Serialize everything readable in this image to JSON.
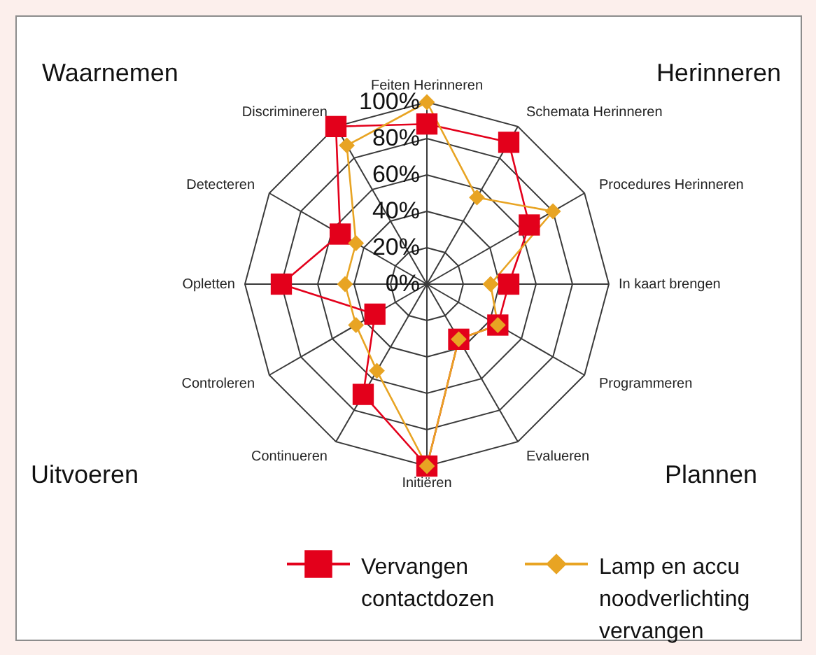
{
  "chart_data": {
    "type": "radar",
    "categories": [
      "Feiten Herinneren",
      "Schemata Herinneren",
      "Procedures Herinneren",
      "In kaart brengen",
      "Programmeren",
      "Evalueren",
      "Initiëren",
      "Continueren",
      "Controleren",
      "Opletten",
      "Detecteren",
      "Discrimineren"
    ],
    "series": [
      {
        "name": "Vervangen contactdozen",
        "color": "#e3001b",
        "marker": "square",
        "values": [
          88,
          90,
          65,
          45,
          45,
          35,
          100,
          70,
          33,
          80,
          55,
          100
        ]
      },
      {
        "name": "Lamp en accu noodverlichting vervangen",
        "color": "#e8a423",
        "marker": "diamond",
        "values": [
          100,
          55,
          80,
          35,
          45,
          35,
          100,
          55,
          45,
          45,
          45,
          88
        ]
      }
    ],
    "ylim": [
      0,
      100
    ],
    "yticks": [
      {
        "value": 0,
        "label": "0%"
      },
      {
        "value": 20,
        "label": "20%"
      },
      {
        "value": 40,
        "label": "40%"
      },
      {
        "value": 60,
        "label": "60%"
      },
      {
        "value": 80,
        "label": "80%"
      },
      {
        "value": 100,
        "label": "100%"
      }
    ],
    "grid": true,
    "legend": "bottom",
    "annotations": [
      "Waarnemen",
      "Herinneren",
      "Uitvoeren",
      "Plannen"
    ]
  }
}
